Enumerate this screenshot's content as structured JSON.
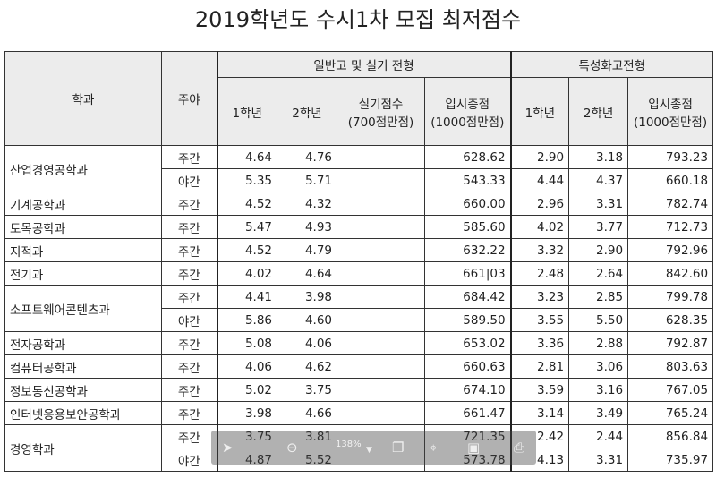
{
  "title": "2019학년도 수시1차 모집 최저점수",
  "headers": {
    "dept": "학과",
    "shift": "주야",
    "group1": "일반고 및 실기 전형",
    "group2": "특성화고전형",
    "g1_year1": "1학년",
    "g1_year2": "2학년",
    "g1_skill_line1": "실기점수",
    "g1_skill_line2": "(700점만점)",
    "g1_total_line1": "입시총점",
    "g1_total_line2": "(1000점만점)",
    "g2_year1": "1학년",
    "g2_year2": "2학년",
    "g2_total_line1": "입시총점",
    "g2_total_line2": "(1000점만점)"
  },
  "rows": [
    {
      "dept": "산업경영공학과",
      "shift": "주간",
      "y1": "4.64",
      "y2": "4.76",
      "skill": "",
      "total": "628.62",
      "s_y1": "2.90",
      "s_y2": "3.18",
      "s_total": "793.23"
    },
    {
      "dept": "",
      "shift": "야간",
      "y1": "5.35",
      "y2": "5.71",
      "skill": "",
      "total": "543.33",
      "s_y1": "4.44",
      "s_y2": "4.37",
      "s_total": "660.18"
    },
    {
      "dept": "기계공학과",
      "shift": "주간",
      "y1": "4.52",
      "y2": "4.32",
      "skill": "",
      "total": "660.00",
      "s_y1": "2.96",
      "s_y2": "3.31",
      "s_total": "782.74"
    },
    {
      "dept": "토목공학과",
      "shift": "주간",
      "y1": "5.47",
      "y2": "4.93",
      "skill": "",
      "total": "585.60",
      "s_y1": "4.02",
      "s_y2": "3.77",
      "s_total": "712.73"
    },
    {
      "dept": "지적과",
      "shift": "주간",
      "y1": "4.52",
      "y2": "4.79",
      "skill": "",
      "total": "632.22",
      "s_y1": "3.32",
      "s_y2": "2.90",
      "s_total": "792.96"
    },
    {
      "dept": "전기과",
      "shift": "주간",
      "y1": "4.02",
      "y2": "4.64",
      "skill": "",
      "total": "661|03",
      "s_y1": "2.48",
      "s_y2": "2.64",
      "s_total": "842.60"
    },
    {
      "dept": "소프트웨어콘텐츠과",
      "shift": "주간",
      "y1": "4.41",
      "y2": "3.98",
      "skill": "",
      "total": "684.42",
      "s_y1": "3.23",
      "s_y2": "2.85",
      "s_total": "799.78"
    },
    {
      "dept": "",
      "shift": "야간",
      "y1": "5.86",
      "y2": "4.60",
      "skill": "",
      "total": "589.50",
      "s_y1": "3.55",
      "s_y2": "5.50",
      "s_total": "628.35"
    },
    {
      "dept": "전자공학과",
      "shift": "주간",
      "y1": "5.08",
      "y2": "4.06",
      "skill": "",
      "total": "653.02",
      "s_y1": "3.36",
      "s_y2": "2.88",
      "s_total": "792.87"
    },
    {
      "dept": "컴퓨터공학과",
      "shift": "주간",
      "y1": "4.06",
      "y2": "4.62",
      "skill": "",
      "total": "660.63",
      "s_y1": "2.81",
      "s_y2": "3.06",
      "s_total": "803.63"
    },
    {
      "dept": "정보통신공학과",
      "shift": "주간",
      "y1": "5.02",
      "y2": "3.75",
      "skill": "",
      "total": "674.10",
      "s_y1": "3.59",
      "s_y2": "3.16",
      "s_total": "767.05"
    },
    {
      "dept": "인터넷응용보안공학과",
      "shift": "주간",
      "y1": "3.98",
      "y2": "4.66",
      "skill": "",
      "total": "661.47",
      "s_y1": "3.14",
      "s_y2": "3.49",
      "s_total": "765.24"
    },
    {
      "dept": "경영학과",
      "shift": "주간",
      "y1": "3.75",
      "y2": "3.81",
      "skill": "",
      "total": "721.35",
      "s_y1": "2.42",
      "s_y2": "2.44",
      "s_total": "856.84"
    },
    {
      "dept": "",
      "shift": "야간",
      "y1": "4.87",
      "y2": "5.52",
      "skill": "",
      "total": "573.78",
      "s_y1": "4.13",
      "s_y2": "3.31",
      "s_total": "735.97"
    }
  ],
  "viewer_toolbar": {
    "zoom": "138%",
    "icons": [
      "cursor-icon",
      "zoom-out-icon",
      "dropdown-icon",
      "copy-icon",
      "crop-icon",
      "fit-icon",
      "print-icon"
    ]
  }
}
